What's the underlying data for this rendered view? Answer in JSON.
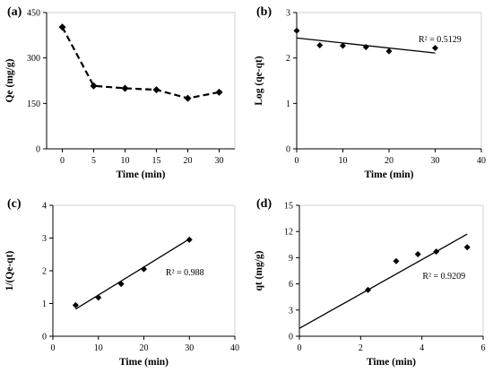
{
  "chart_data": [
    {
      "panel": "(a)",
      "type": "line",
      "style": "dashed line with diamond markers",
      "xlabel": "Time (min)",
      "ylabel": "Qe (mg/g)",
      "categories": [
        "0",
        "5",
        "10",
        "15",
        "20",
        "30"
      ],
      "values": [
        402,
        208,
        200,
        195,
        167,
        187
      ],
      "ylim": [
        0,
        450
      ],
      "yticks": [
        0,
        150,
        300,
        450
      ],
      "grid": false
    },
    {
      "panel": "(b)",
      "type": "scatter",
      "trendline": "linear",
      "annotation": "R² = 0.5129",
      "xlabel": "Time (min)",
      "ylabel": "Log (qe-qt)",
      "x": [
        0,
        5,
        10,
        15,
        20,
        30
      ],
      "y": [
        2.6,
        2.28,
        2.27,
        2.24,
        2.15,
        2.22
      ],
      "fit": {
        "x": [
          0,
          30
        ],
        "y": [
          2.44,
          2.11
        ]
      },
      "xlim": [
        0,
        40
      ],
      "ylim": [
        0,
        3
      ],
      "xticks": [
        0,
        10,
        20,
        30,
        40
      ],
      "yticks": [
        0,
        1,
        2,
        3
      ],
      "grid": false
    },
    {
      "panel": "(c)",
      "type": "scatter",
      "trendline": "linear",
      "annotation": "R² = 0.988",
      "xlabel": "Time (min)",
      "ylabel": "1/(Qe-qt)",
      "x": [
        5,
        10,
        15,
        20,
        30
      ],
      "y": [
        0.95,
        1.18,
        1.6,
        2.05,
        2.95
      ],
      "fit": {
        "x": [
          5,
          30
        ],
        "y": [
          0.83,
          2.97
        ]
      },
      "xlim": [
        0,
        40
      ],
      "ylim": [
        0,
        4
      ],
      "xticks": [
        0,
        10,
        20,
        30,
        40
      ],
      "yticks": [
        0,
        1,
        2,
        3,
        4
      ],
      "grid": false
    },
    {
      "panel": "(d)",
      "type": "scatter",
      "trendline": "linear",
      "annotation": "R² = 0.9209",
      "xlabel": "Time (min)",
      "ylabel": "qt (mg/g)",
      "x": [
        2.24,
        3.16,
        3.87,
        4.47,
        5.48
      ],
      "y": [
        5.3,
        8.6,
        9.4,
        9.7,
        10.2
      ],
      "fit": {
        "x": [
          0,
          5.48
        ],
        "y": [
          0.9,
          11.7
        ]
      },
      "xlim": [
        0,
        6
      ],
      "ylim": [
        0,
        15
      ],
      "xticks": [
        0,
        2,
        4,
        6
      ],
      "yticks": [
        0,
        3,
        6,
        9,
        12,
        15
      ],
      "grid": false
    }
  ]
}
